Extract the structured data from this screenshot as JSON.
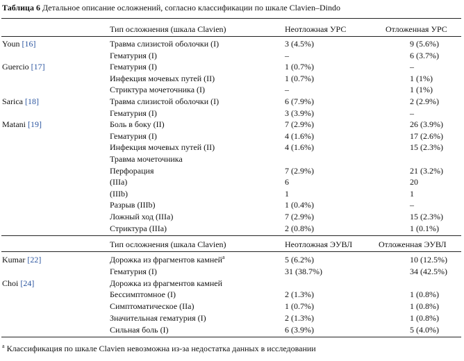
{
  "caption": {
    "label": "Таблица 6",
    "text": "Детальное описание осложнений, согласно классификации по шкале Clavien–Dindo"
  },
  "header1": {
    "type": "Тип осложнения (шкала Clavien)",
    "col_a": "Неотложная УРС",
    "col_b": "Отложенная УРС"
  },
  "header2": {
    "type": "Тип осложнения (шкала Clavien)",
    "col_a": "Неотложная ЭУВЛ",
    "col_b": "Отложенная ЭУВЛ"
  },
  "rows1": [
    {
      "author": "Youn ",
      "ref": "[16]",
      "type": "Травма слизистой оболочки (I)",
      "a": "3 (4.5%)",
      "b": "9 (5.6%)"
    },
    {
      "author": "",
      "ref": "",
      "type": "Гематурия (I)",
      "a": "–",
      "b": "6 (3.7%)"
    },
    {
      "author": "Guercio ",
      "ref": "[17]",
      "type": "Гематурия (I)",
      "a": "1 (0.7%)",
      "b": "–"
    },
    {
      "author": "",
      "ref": "",
      "type": "Инфекция мочевых путей (II)",
      "a": "1 (0.7%)",
      "b": "1 (1%)"
    },
    {
      "author": "",
      "ref": "",
      "type": "Стриктура мочеточника (I)",
      "a": "–",
      "b": "1 (1%)"
    },
    {
      "author": "Sarica ",
      "ref": "[18]",
      "type": "Травма слизистой оболочки (I)",
      "a": "6 (7.9%)",
      "b": "2 (2.9%)"
    },
    {
      "author": "",
      "ref": "",
      "type": "Гематурия (I)",
      "a": "3 (3.9%)",
      "b": "–"
    },
    {
      "author": "Matani ",
      "ref": "[19]",
      "type": "Боль в боку (II)",
      "a": "7 (2.9%)",
      "b": "26 (3.9%)"
    },
    {
      "author": "",
      "ref": "",
      "type": "Гематурия (I)",
      "a": "4 (1.6%)",
      "b": "17 (2.6%)"
    },
    {
      "author": "",
      "ref": "",
      "type": "Инфекция мочевых путей (II)",
      "a": "4 (1.6%)",
      "b": "15 (2.3%)"
    },
    {
      "author": "",
      "ref": "",
      "type": "Травма мочеточника",
      "a": "",
      "b": ""
    },
    {
      "author": "",
      "ref": "",
      "type": "Перфорация",
      "a": "7 (2.9%)",
      "b": "21 (3.2%)"
    },
    {
      "author": "",
      "ref": "",
      "type": "(IIIa)",
      "a": "6",
      "b": "20"
    },
    {
      "author": "",
      "ref": "",
      "type": "(IIIb)",
      "a": "1",
      "b": "1"
    },
    {
      "author": "",
      "ref": "",
      "type": "Разрыв (IIIb)",
      "a": "1 (0.4%)",
      "b": "–"
    },
    {
      "author": "",
      "ref": "",
      "type": "Ложный ход (IIIa)",
      "a": "7 (2.9%)",
      "b": "15 (2.3%)"
    },
    {
      "author": "",
      "ref": "",
      "type": "Стриктура (IIIa)",
      "a": "2 (0.8%)",
      "b": "1 (0.1%)"
    }
  ],
  "rows2": [
    {
      "author": "Kumar ",
      "ref": "[22]",
      "type": "Дорожка из фрагментов камней",
      "sup": "a",
      "a": "5 (6.2%)",
      "b": "10 (12.5%)"
    },
    {
      "author": "",
      "ref": "",
      "type": "Гематурия (I)",
      "sup": "",
      "a": "31 (38.7%)",
      "b": "34 (42.5%)"
    },
    {
      "author": "Choi ",
      "ref": "[24]",
      "type": "Дорожка из фрагментов камней",
      "sup": "",
      "a": "",
      "b": ""
    },
    {
      "author": "",
      "ref": "",
      "type": "Бессимптомное (I)",
      "sup": "",
      "a": "2 (1.3%)",
      "b": "1 (0.8%)"
    },
    {
      "author": "",
      "ref": "",
      "type": "Симптоматическое (IIa)",
      "sup": "",
      "a": "1 (0.7%)",
      "b": "1 (0.8%)"
    },
    {
      "author": "",
      "ref": "",
      "type": "Значительная гематурия (I)",
      "sup": "",
      "a": "2 (1.3%)",
      "b": "1 (0.8%)"
    },
    {
      "author": "",
      "ref": "",
      "type": "Сильная боль (I)",
      "sup": "",
      "a": "6 (3.9%)",
      "b": "5 (4.0%)"
    }
  ],
  "footnote": {
    "mark": "a",
    "text": " Классификация по шкале Clavien невозможна из-за недостатка данных в исследовании"
  }
}
